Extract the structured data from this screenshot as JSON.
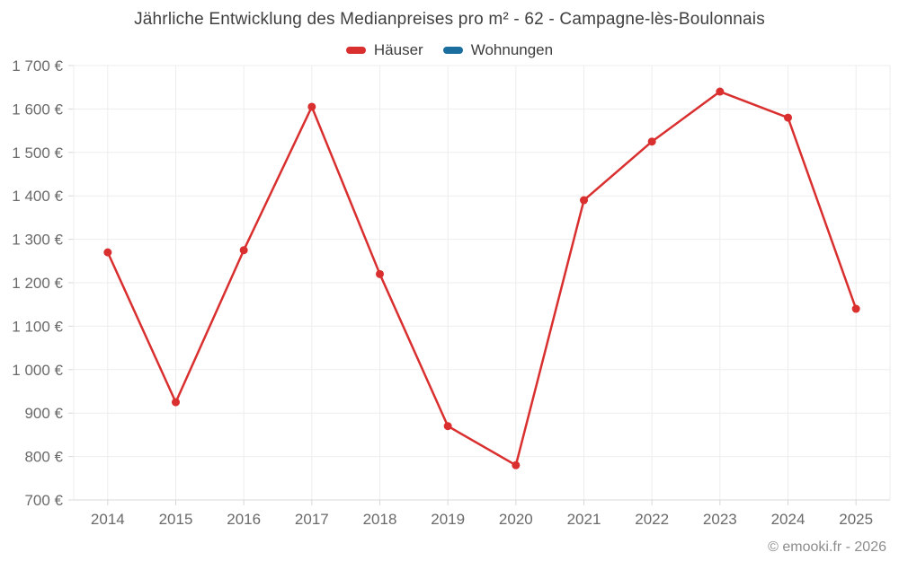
{
  "chart_data": {
    "type": "line",
    "title": "Jährliche Entwicklung des Medianpreises pro m² - 62 - Campagne-lès-Boulonnais",
    "categories": [
      "2014",
      "2015",
      "2016",
      "2017",
      "2018",
      "2019",
      "2020",
      "2021",
      "2022",
      "2023",
      "2024",
      "2025"
    ],
    "series": [
      {
        "name": "Häuser",
        "color": "#d92f2f",
        "values": [
          1270,
          925,
          1275,
          1605,
          1220,
          870,
          780,
          1390,
          1525,
          1640,
          1580,
          1140
        ]
      },
      {
        "name": "Wohnungen",
        "color": "#1a6f9e",
        "values": []
      }
    ],
    "ylim": [
      700,
      1700
    ],
    "y_tick_step": 100,
    "y_tick_labels": [
      "700 €",
      "800 €",
      "900 €",
      "1 000 €",
      "1 100 €",
      "1 200 €",
      "1 300 €",
      "1 400 €",
      "1 500 €",
      "1 600 €",
      "1 700 €"
    ],
    "grid": "on",
    "legend_position": "top",
    "colors": {
      "gridline": "#ededed",
      "axis_border": "#d8d8d8",
      "tick_text": "#6a6a6a"
    }
  },
  "footer": {
    "copyright": "© emooki.fr - 2026"
  }
}
